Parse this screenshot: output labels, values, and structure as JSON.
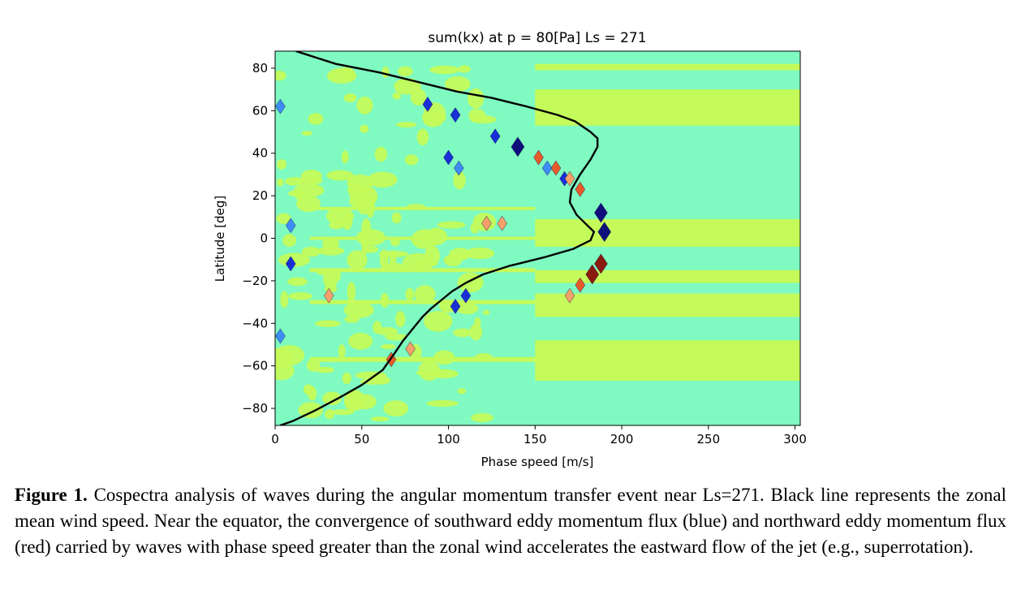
{
  "chart_data": {
    "type": "heatmap",
    "title": "sum(kx) at p = 80[Pa] Ls = 271",
    "xlabel": "Phase speed [m/s]",
    "ylabel": "Latitude [deg]",
    "xlim": [
      0,
      303
    ],
    "ylim": [
      -88,
      88
    ],
    "xticks": [
      0,
      50,
      100,
      150,
      200,
      250,
      300
    ],
    "yticks": [
      -80,
      -60,
      -40,
      -20,
      0,
      20,
      40,
      60,
      80
    ],
    "grid": false,
    "colors": {
      "background": "#7ffac1",
      "positive_band": "#c4fb5a",
      "blue_light": "#3e8cf6",
      "blue_mid": "#1a2fd6",
      "blue_dark": "#10107c",
      "red_light": "#f5a06a",
      "red_mid": "#e85a2a",
      "red_dark": "#8a1a10",
      "wind_line": "#000000"
    },
    "bands": [
      [
        79,
        82
      ],
      [
        53,
        70
      ],
      [
        -4,
        9
      ],
      [
        -15,
        -21
      ],
      [
        -26,
        -37
      ],
      [
        -48,
        -67
      ]
    ],
    "blobs": [
      {
        "x": 3,
        "y": 62,
        "kind": "blue_light"
      },
      {
        "x": 9,
        "y": 6,
        "kind": "blue_light"
      },
      {
        "x": 9,
        "y": -12,
        "kind": "blue_mid"
      },
      {
        "x": 3,
        "y": -46,
        "kind": "blue_light"
      },
      {
        "x": 88,
        "y": 63,
        "kind": "blue_mid"
      },
      {
        "x": 104,
        "y": 58,
        "kind": "blue_mid"
      },
      {
        "x": 100,
        "y": 38,
        "kind": "blue_mid"
      },
      {
        "x": 106,
        "y": 33,
        "kind": "blue_light"
      },
      {
        "x": 127,
        "y": 48,
        "kind": "blue_mid"
      },
      {
        "x": 140,
        "y": 43,
        "kind": "blue_dark"
      },
      {
        "x": 152,
        "y": 38,
        "kind": "red_mid"
      },
      {
        "x": 157,
        "y": 33,
        "kind": "blue_light"
      },
      {
        "x": 162,
        "y": 33,
        "kind": "red_mid"
      },
      {
        "x": 167,
        "y": 28,
        "kind": "blue_mid"
      },
      {
        "x": 170,
        "y": 28,
        "kind": "red_light"
      },
      {
        "x": 176,
        "y": 23,
        "kind": "red_mid"
      },
      {
        "x": 122,
        "y": 7,
        "kind": "red_light"
      },
      {
        "x": 131,
        "y": 7,
        "kind": "red_light"
      },
      {
        "x": 188,
        "y": 12,
        "kind": "blue_dark"
      },
      {
        "x": 190,
        "y": 3,
        "kind": "blue_dark"
      },
      {
        "x": 188,
        "y": -12,
        "kind": "red_dark"
      },
      {
        "x": 183,
        "y": -17,
        "kind": "red_dark"
      },
      {
        "x": 176,
        "y": -22,
        "kind": "red_mid"
      },
      {
        "x": 170,
        "y": -27,
        "kind": "red_light"
      },
      {
        "x": 110,
        "y": -27,
        "kind": "blue_mid"
      },
      {
        "x": 104,
        "y": -32,
        "kind": "blue_mid"
      },
      {
        "x": 31,
        "y": -27,
        "kind": "red_light"
      },
      {
        "x": 67,
        "y": -57,
        "kind": "red_mid"
      },
      {
        "x": 78,
        "y": -52,
        "kind": "red_light"
      }
    ],
    "wind_line": {
      "name": "zonal mean wind speed",
      "points": [
        [
          12,
          88
        ],
        [
          35,
          82
        ],
        [
          60,
          78
        ],
        [
          85,
          73
        ],
        [
          105,
          69
        ],
        [
          125,
          66
        ],
        [
          145,
          62
        ],
        [
          163,
          58
        ],
        [
          173,
          55
        ],
        [
          182,
          50
        ],
        [
          186,
          47
        ],
        [
          186,
          43
        ],
        [
          182,
          37
        ],
        [
          176,
          30
        ],
        [
          171,
          23
        ],
        [
          170,
          17
        ],
        [
          174,
          11
        ],
        [
          179,
          7
        ],
        [
          184,
          3
        ],
        [
          182,
          -1
        ],
        [
          172,
          -5
        ],
        [
          155,
          -9
        ],
        [
          135,
          -13
        ],
        [
          120,
          -17
        ],
        [
          110,
          -21
        ],
        [
          102,
          -25
        ],
        [
          96,
          -29
        ],
        [
          90,
          -33
        ],
        [
          85,
          -37
        ],
        [
          80,
          -42
        ],
        [
          74,
          -48
        ],
        [
          69,
          -54
        ],
        [
          62,
          -62
        ],
        [
          50,
          -69
        ],
        [
          37,
          -75
        ],
        [
          23,
          -81
        ],
        [
          10,
          -86
        ],
        [
          3,
          -88
        ]
      ]
    }
  },
  "caption": {
    "label": "Figure 1.",
    "text": "Cospectra analysis of waves during the angular momentum transfer event near Ls=271. Black line represents the zonal mean wind speed. Near the equator, the convergence of southward eddy momentum flux (blue) and northward eddy momentum flux (red) carried by waves with phase speed greater than the zonal wind accelerates the eastward flow of the jet (e.g., superrotation)."
  }
}
